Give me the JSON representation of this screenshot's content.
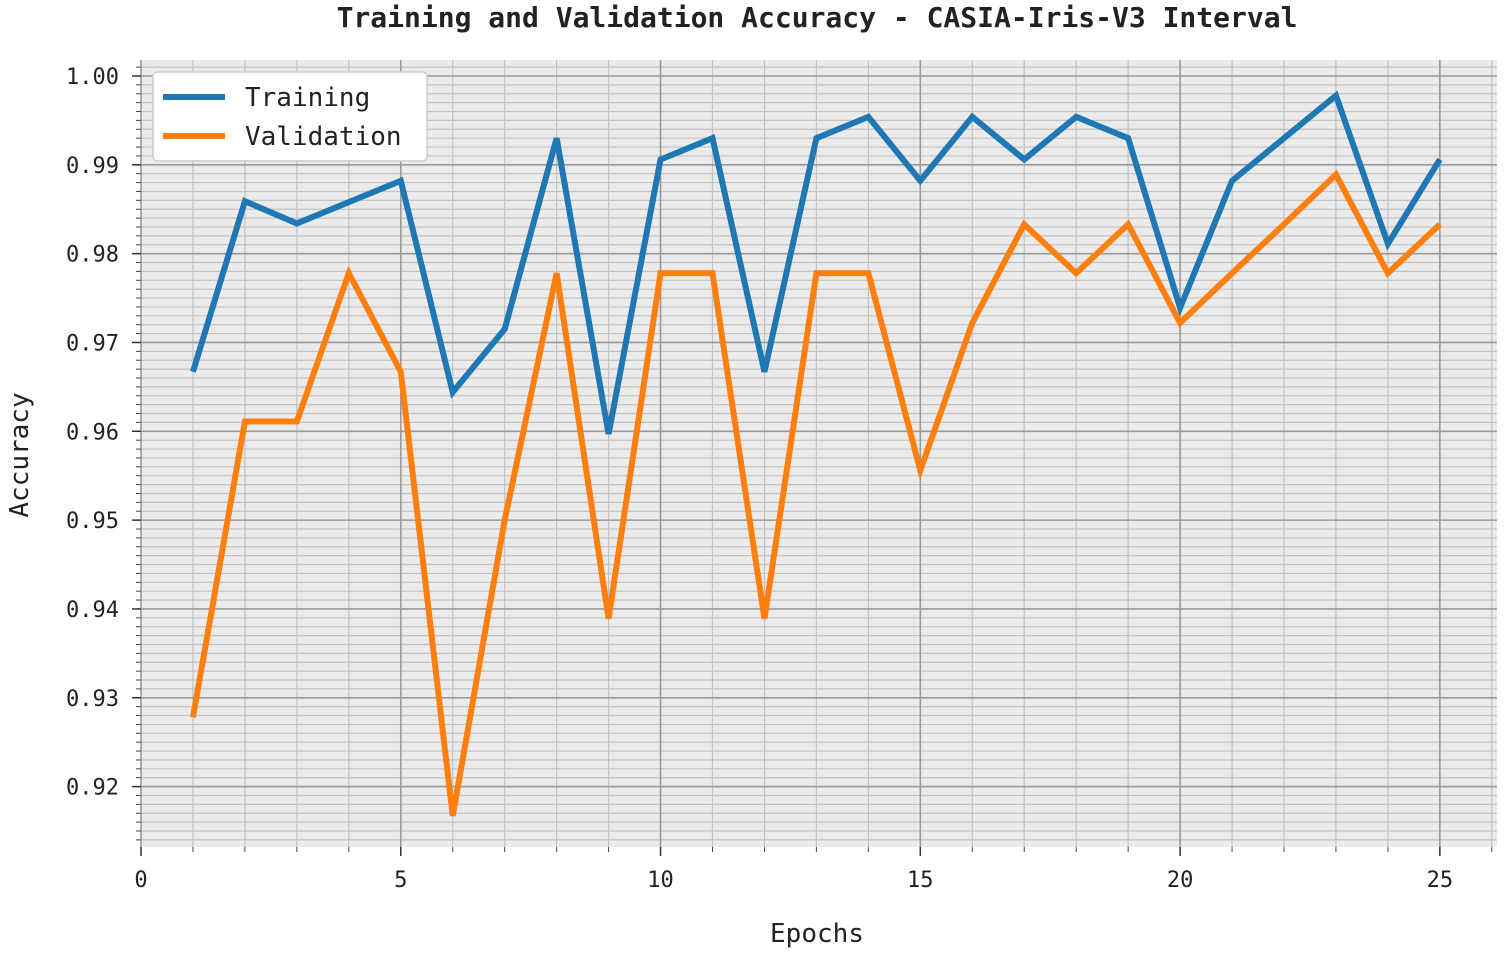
{
  "chart_data": {
    "type": "line",
    "title": "Training and Validation Accuracy - CASIA-Iris-V3 Interval",
    "xlabel": "Epochs",
    "ylabel": "Accuracy",
    "x": [
      1,
      2,
      3,
      4,
      5,
      6,
      7,
      8,
      9,
      10,
      11,
      12,
      13,
      14,
      15,
      16,
      17,
      18,
      19,
      20,
      21,
      22,
      23,
      24,
      25
    ],
    "xlim": [
      0,
      26.1
    ],
    "ylim": [
      0.9132,
      1.0018
    ],
    "xticks": [
      0,
      5,
      10,
      15,
      20,
      25
    ],
    "xtick_labels": [
      "0",
      "5",
      "10",
      "15",
      "20",
      "25"
    ],
    "yticks": [
      0.92,
      0.93,
      0.94,
      0.95,
      0.96,
      0.97,
      0.98,
      0.99,
      1.0
    ],
    "ytick_labels": [
      "0.92",
      "0.93",
      "0.94",
      "0.95",
      "0.96",
      "0.97",
      "0.98",
      "0.99",
      "1.00"
    ],
    "x_minor_step": 1,
    "y_minor_step": 0.001,
    "grid": true,
    "legend_position": "top-left",
    "background": "#ebebeb",
    "series": [
      {
        "name": "Training",
        "color": "#1f77b4",
        "values": [
          0.9667,
          0.9859,
          0.9834,
          0.9858,
          0.9882,
          0.9644,
          0.9715,
          0.993,
          0.9597,
          0.9906,
          0.993,
          0.9667,
          0.993,
          0.9954,
          0.9882,
          0.9954,
          0.9906,
          0.9954,
          0.993,
          0.9739,
          0.9882,
          0.993,
          0.9978,
          0.9811,
          0.9906
        ]
      },
      {
        "name": "Validation",
        "color": "#ff7f0e",
        "values": [
          0.9278,
          0.9611,
          0.9611,
          0.9778,
          0.9667,
          0.9167,
          0.95,
          0.9778,
          0.9389,
          0.9778,
          0.9778,
          0.9389,
          0.9778,
          0.9778,
          0.9556,
          0.9722,
          0.9833,
          0.9778,
          0.9833,
          0.9722,
          0.9778,
          0.9833,
          0.9889,
          0.9778,
          0.9833
        ]
      }
    ]
  }
}
